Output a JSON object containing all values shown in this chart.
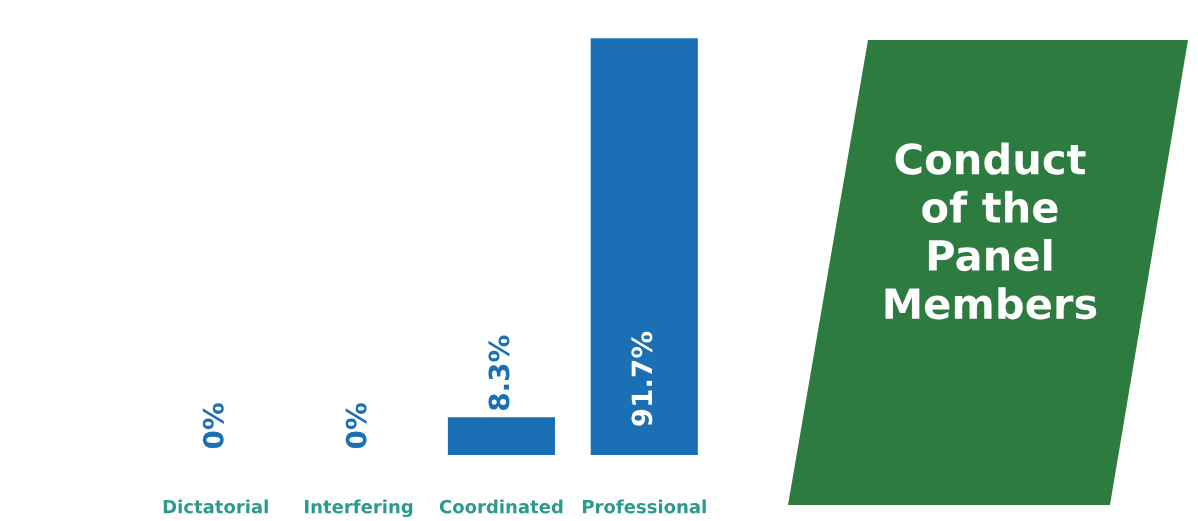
{
  "chart_data": {
    "type": "bar",
    "title": "Conduct\nof the\nPanel\nMembers",
    "categories": [
      "Dictatorial",
      "Interfering",
      "Coordinated",
      "Professional"
    ],
    "values": [
      0,
      0,
      8.3,
      91.7
    ],
    "color": "#1a6fb5",
    "value_labels": [
      "0%",
      "0%",
      "8.3%",
      "91.7%"
    ],
    "grid": false,
    "legend": false
  }
}
